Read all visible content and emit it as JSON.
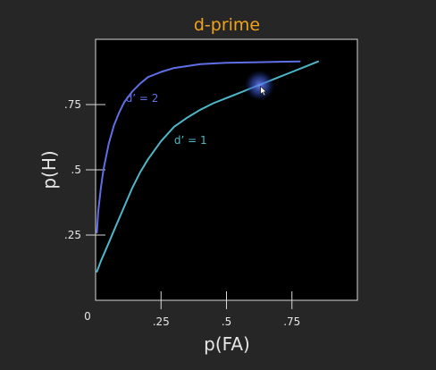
{
  "colors": {
    "background": "#262626",
    "plot_background": "#000000",
    "frame": "#d8d8d8",
    "title": "#f2a31c",
    "text": "#e6e6e6",
    "curve_d2": "#5f6fe6",
    "curve_d1": "#4fb6c8",
    "cursor_glow": "#4a68e0"
  },
  "cursor": {
    "icon": "arrow-cursor-icon",
    "fa": 0.63,
    "h": 0.82
  },
  "chart_data": {
    "type": "line",
    "title": "d-prime",
    "xlabel": "p(FA)",
    "ylabel": "p(H)",
    "xlim": [
      0,
      1
    ],
    "ylim": [
      0,
      1
    ],
    "grid": false,
    "legend": "none",
    "origin_label": "0",
    "x_ticks": [
      {
        "value": 0.25,
        "label": ".25"
      },
      {
        "value": 0.5,
        "label": ".5"
      },
      {
        "value": 0.75,
        "label": ".75"
      }
    ],
    "y_ticks": [
      {
        "value": 0.25,
        "label": ".25"
      },
      {
        "value": 0.5,
        "label": ".5"
      },
      {
        "value": 0.75,
        "label": ".75"
      }
    ],
    "series": [
      {
        "name": "d’ = 2",
        "color": "#5f6fe6",
        "label_at": {
          "fa": 0.115,
          "h": 0.76
        },
        "points": [
          [
            0.005,
            0.26
          ],
          [
            0.01,
            0.34
          ],
          [
            0.02,
            0.43
          ],
          [
            0.03,
            0.5
          ],
          [
            0.04,
            0.55
          ],
          [
            0.05,
            0.6
          ],
          [
            0.07,
            0.67
          ],
          [
            0.09,
            0.72
          ],
          [
            0.11,
            0.76
          ],
          [
            0.14,
            0.8
          ],
          [
            0.17,
            0.83
          ],
          [
            0.2,
            0.855
          ],
          [
            0.25,
            0.875
          ],
          [
            0.3,
            0.89
          ],
          [
            0.4,
            0.905
          ],
          [
            0.5,
            0.91
          ],
          [
            0.6,
            0.912
          ],
          [
            0.7,
            0.914
          ],
          [
            0.78,
            0.915
          ]
        ]
      },
      {
        "name": "d’ = 1",
        "color": "#4fb6c8",
        "label_at": {
          "fa": 0.3,
          "h": 0.6
        },
        "points": [
          [
            0.005,
            0.11
          ],
          [
            0.02,
            0.15
          ],
          [
            0.05,
            0.22
          ],
          [
            0.08,
            0.29
          ],
          [
            0.11,
            0.36
          ],
          [
            0.14,
            0.43
          ],
          [
            0.17,
            0.49
          ],
          [
            0.2,
            0.54
          ],
          [
            0.25,
            0.61
          ],
          [
            0.3,
            0.665
          ],
          [
            0.35,
            0.7
          ],
          [
            0.4,
            0.73
          ],
          [
            0.45,
            0.755
          ],
          [
            0.5,
            0.775
          ],
          [
            0.55,
            0.795
          ],
          [
            0.6,
            0.815
          ],
          [
            0.65,
            0.835
          ],
          [
            0.7,
            0.855
          ],
          [
            0.75,
            0.875
          ],
          [
            0.8,
            0.895
          ],
          [
            0.85,
            0.915
          ]
        ]
      }
    ]
  }
}
